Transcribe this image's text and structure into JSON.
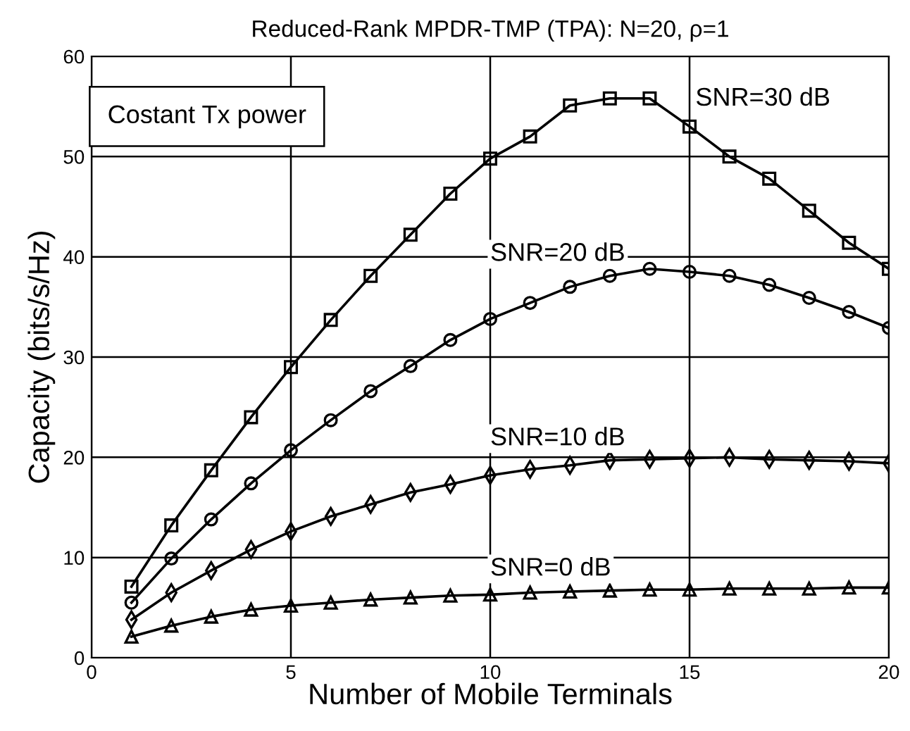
{
  "chart_data": {
    "type": "line",
    "title": "Reduced-Rank MPDR-TMP (TPA): N=20, ρ=1",
    "xlabel": "Number of Mobile Terminals",
    "ylabel": "Capacity (bits/s/Hz)",
    "x": [
      1,
      2,
      3,
      4,
      5,
      6,
      7,
      8,
      9,
      10,
      11,
      12,
      13,
      14,
      15,
      16,
      17,
      18,
      19,
      20
    ],
    "series": [
      {
        "name": "SNR=30 dB",
        "color": "#000000",
        "marker": "square",
        "values": [
          7.1,
          13.2,
          18.7,
          24,
          29,
          33.7,
          38.1,
          42.2,
          46.3,
          49.8,
          52,
          55.1,
          55.8,
          55.8,
          53,
          50,
          47.8,
          44.6,
          41.4,
          38.8
        ]
      },
      {
        "name": "SNR=20 dB",
        "color": "#000000",
        "marker": "circle",
        "values": [
          5.5,
          9.9,
          13.8,
          17.4,
          20.7,
          23.7,
          26.6,
          29.1,
          31.7,
          33.8,
          35.4,
          37,
          38.1,
          38.8,
          38.5,
          38.1,
          37.2,
          35.9,
          34.5,
          32.9
        ]
      },
      {
        "name": "SNR=10 dB",
        "color": "#000000",
        "marker": "diamond",
        "values": [
          3.8,
          6.5,
          8.7,
          10.8,
          12.6,
          14.1,
          15.3,
          16.5,
          17.3,
          18.2,
          18.8,
          19.2,
          19.7,
          19.8,
          19.9,
          20,
          19.8,
          19.7,
          19.6,
          19.4
        ]
      },
      {
        "name": "SNR=0 dB",
        "color": "#000000",
        "marker": "triangle",
        "values": [
          2.1,
          3.2,
          4.1,
          4.8,
          5.2,
          5.5,
          5.8,
          6.0,
          6.2,
          6.3,
          6.5,
          6.6,
          6.7,
          6.8,
          6.8,
          6.9,
          6.9,
          6.9,
          7.0,
          7.0
        ]
      }
    ],
    "annotations": [
      "Costant Tx power"
    ],
    "xlim": [
      0,
      20
    ],
    "xticks": [
      0,
      5,
      10,
      15,
      20
    ],
    "ylim": [
      0,
      60
    ],
    "yticks": [
      0,
      10,
      20,
      30,
      40,
      50,
      60
    ],
    "grid": true,
    "line_style": "solid"
  }
}
